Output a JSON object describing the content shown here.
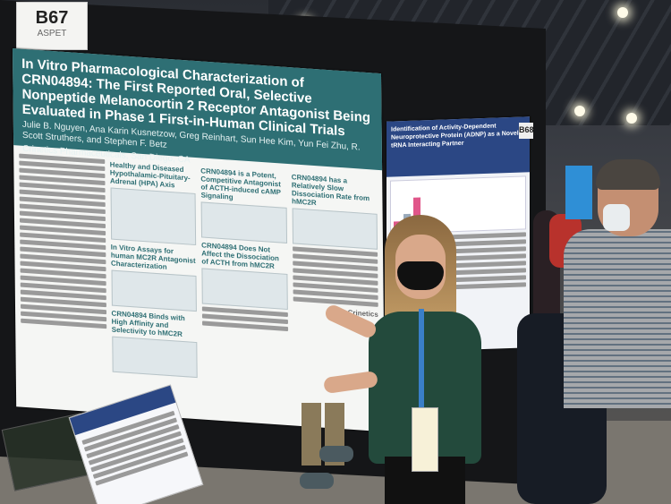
{
  "booth": {
    "number": "B67",
    "organization": "ASPET"
  },
  "main_poster": {
    "title": "In Vitro Pharmacological Characterization of CRN04894: The First Reported Oral, Selective Nonpeptide Melanocortin 2 Receptor Antagonist Being Evaluated in Phase 1 First-in-Human Clinical Trials",
    "authors": "Julie B. Nguyen, Ana Karin Kusnetzow, Greg Reinhart, Sun Hee Kim, Yun Fei Zhu, R. Scott Struthers, and Stephen F. Betz",
    "affiliation": "Crinetics Pharmaceuticals, San Diego, CA",
    "sections": {
      "hpa_axis": "Healthy and Diseased Hypothalamic-Pituitary-Adrenal (HPA) Axis",
      "in_vitro": "In Vitro Assays for human MC2R Antagonist Characterization",
      "binds": "CRN04894 Binds with High Affinity and Selectivity to hMC2R",
      "potent": "CRN04894 is a Potent, Competitive Antagonist of ACTH-induced cAMP Signaling",
      "dissociation": "CRN04894 Does Not Affect the Dissociation of ACTH from hMC2R",
      "slow": "CRN04894 has a Relatively Slow Dissociation Rate from hMC2R"
    },
    "logo": "Crinetics"
  },
  "right_poster": {
    "board_number": "B68",
    "title": "Identification of Activity-Dependent Neuroprotective Protein (ADNP) as a Novel tRNA Interacting Partner"
  }
}
